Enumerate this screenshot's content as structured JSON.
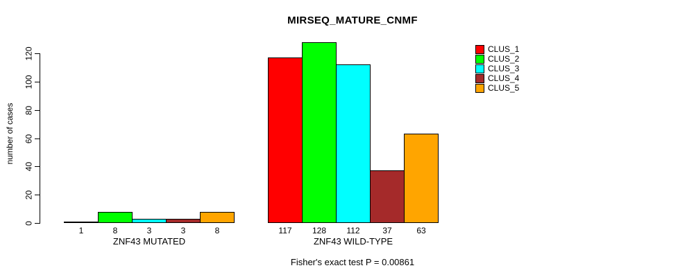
{
  "chart_data": {
    "type": "bar",
    "title": "MIRSEQ_MATURE_CNMF",
    "ylabel": "number of cases",
    "xlabel": "",
    "categories": [
      "ZNF43 MUTATED",
      "ZNF43 WILD-TYPE"
    ],
    "series": [
      {
        "name": "CLUS_1",
        "color": "#FF0000",
        "values": [
          1,
          117
        ]
      },
      {
        "name": "CLUS_2",
        "color": "#00FF00",
        "values": [
          8,
          128
        ]
      },
      {
        "name": "CLUS_3",
        "color": "#00FFFF",
        "values": [
          3,
          112
        ]
      },
      {
        "name": "CLUS_4",
        "color": "#A52A2A",
        "values": [
          3,
          37
        ]
      },
      {
        "name": "CLUS_5",
        "color": "#FFA500",
        "values": [
          8,
          63
        ]
      }
    ],
    "bar_labels": [
      [
        "1",
        "8",
        "3",
        "3",
        "8"
      ],
      [
        "117",
        "128",
        "112",
        "37",
        "63"
      ]
    ],
    "yticks": [
      0,
      20,
      40,
      60,
      80,
      100,
      120
    ],
    "ylim": [
      0,
      128
    ],
    "grid": false,
    "legend_position": "right",
    "annotation": "Fisher's exact test P = 0.00861"
  }
}
